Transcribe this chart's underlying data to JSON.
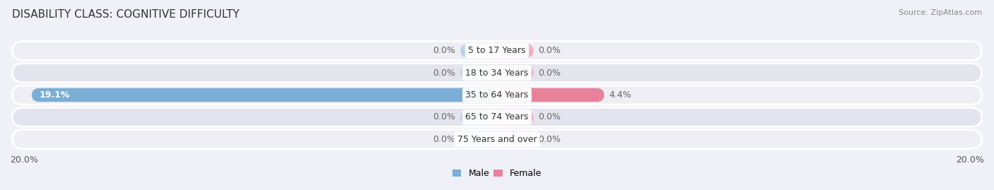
{
  "title": "DISABILITY CLASS: COGNITIVE DIFFICULTY",
  "source": "Source: ZipAtlas.com",
  "categories": [
    "5 to 17 Years",
    "18 to 34 Years",
    "35 to 64 Years",
    "65 to 74 Years",
    "75 Years and over"
  ],
  "male_values": [
    0.0,
    0.0,
    19.1,
    0.0,
    0.0
  ],
  "female_values": [
    0.0,
    0.0,
    4.4,
    0.0,
    0.0
  ],
  "xlim": 20.0,
  "male_color": "#7aaed6",
  "female_color": "#e8829a",
  "male_color_light": "#b8d4ea",
  "female_color_light": "#f0afc0",
  "row_bg_color_odd": "#eeeef4",
  "row_bg_color_even": "#e4e4ee",
  "label_color_inside": "#ffffff",
  "label_color_outside": "#666666",
  "title_fontsize": 11,
  "source_fontsize": 8,
  "label_fontsize": 9,
  "category_fontsize": 9,
  "axis_label_fontsize": 9,
  "legend_fontsize": 9,
  "background_color": "#f0f0f8",
  "default_bar_size": 1.5
}
